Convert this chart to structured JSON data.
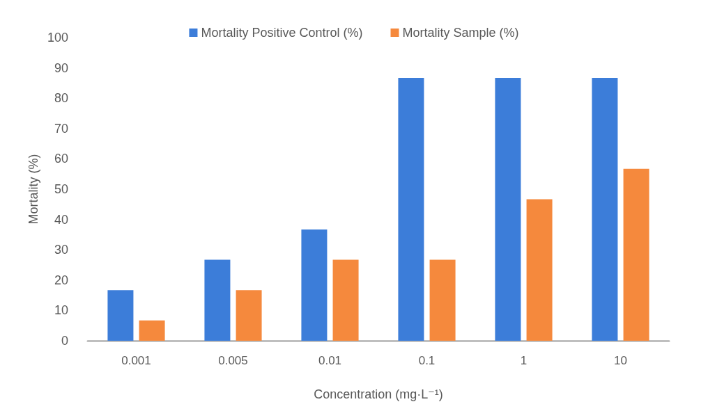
{
  "chart_data": {
    "type": "bar",
    "xlabel": "Concentration (mg·L⁻¹)",
    "ylabel": "Mortality (%)",
    "categories": [
      "0.001",
      "0.005",
      "0.01",
      "0.1",
      "1",
      "10"
    ],
    "series": [
      {
        "name": "Mortality Positive Control (%)",
        "color": "#3c7dd9",
        "values": [
          16.7,
          26.7,
          36.7,
          86.7,
          86.7,
          86.7
        ]
      },
      {
        "name": "Mortality Sample (%)",
        "color": "#f5893d",
        "values": [
          6.7,
          16.7,
          26.7,
          26.7,
          46.7,
          56.7
        ]
      }
    ],
    "ylim": [
      0,
      100
    ],
    "yticks": [
      0,
      10,
      20,
      30,
      40,
      50,
      60,
      70,
      80,
      90,
      100
    ],
    "grid": false,
    "legend": "top"
  }
}
